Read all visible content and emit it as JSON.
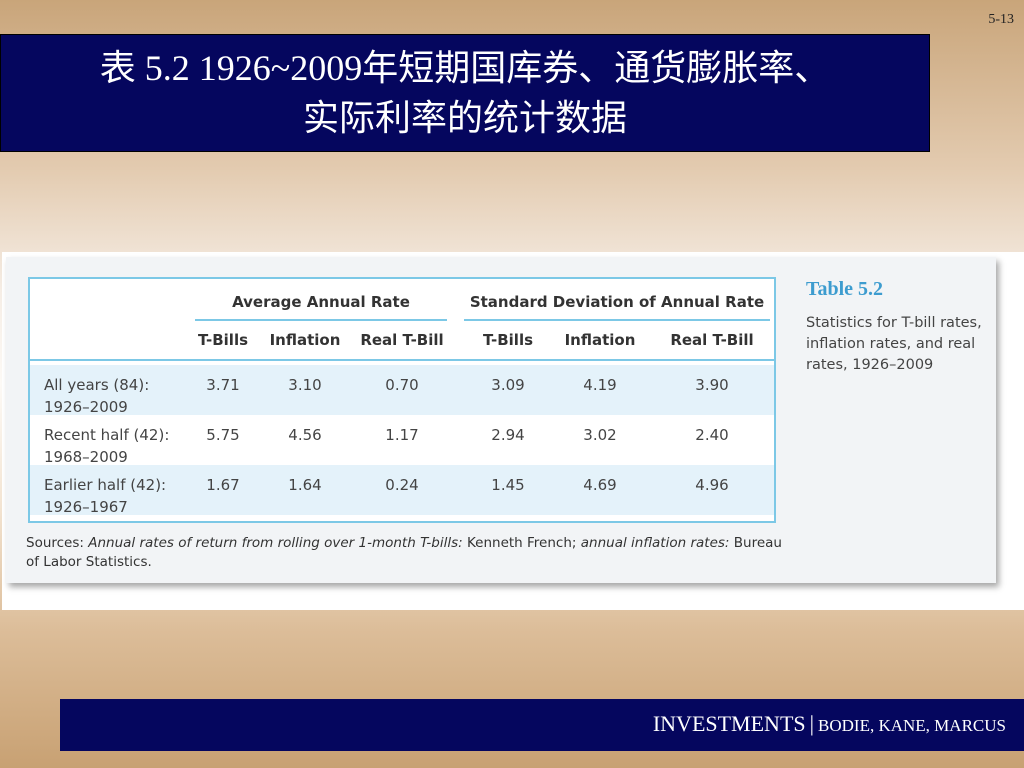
{
  "slide_number": "5-13",
  "title": {
    "line1": "表 5.2 1926~2009年短期国库券、通货膨胀率、",
    "line2": "实际利率的统计数据"
  },
  "table": {
    "group_headers": [
      "Average Annual Rate",
      "Standard Deviation of Annual Rate"
    ],
    "column_headers": [
      "T-Bills",
      "Inflation",
      "Real T-Bill",
      "T-Bills",
      "Inflation",
      "Real T-Bill"
    ],
    "rows": [
      {
        "label1": "All years (84):",
        "label2": "1926–2009",
        "values": [
          "3.71",
          "3.10",
          "0.70",
          "3.09",
          "4.19",
          "3.90"
        ]
      },
      {
        "label1": "Recent half (42):",
        "label2": "1968–2009",
        "values": [
          "5.75",
          "4.56",
          "1.17",
          "2.94",
          "3.02",
          "2.40"
        ]
      },
      {
        "label1": "Earlier half (42):",
        "label2": "1926–1967",
        "values": [
          "1.67",
          "1.64",
          "0.24",
          "1.45",
          "4.69",
          "4.96"
        ]
      }
    ]
  },
  "caption": {
    "title": "Table 5.2",
    "text": "Statistics for T-bill rates, inflation rates, and real rates, 1926–2009"
  },
  "sources": {
    "label": "Sources:",
    "part1": "Annual rates of return from rolling over 1-month T-bills:",
    "part2": "Kenneth French;",
    "part3": "annual inflation rates:",
    "part4": "Bureau of Labor Statistics."
  },
  "footer": {
    "book": "INVESTMENTS",
    "separator": "|",
    "authors": "BODIE, KANE, MARCUS"
  },
  "colors": {
    "title_bg": "#05065e",
    "accent_blue": "#7cc8e6",
    "caption_blue": "#3d9ccf",
    "row_shade": "#e4f2fa"
  }
}
